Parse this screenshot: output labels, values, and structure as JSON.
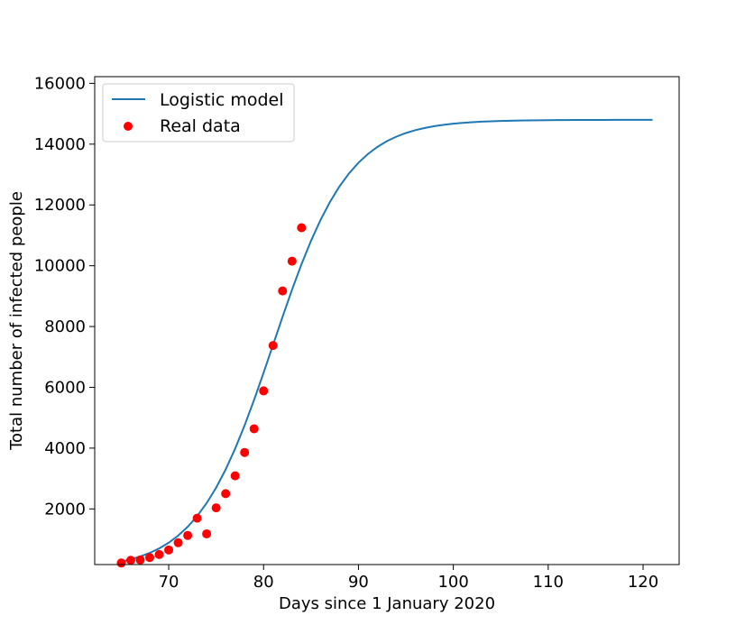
{
  "chart_data": {
    "type": "line",
    "title": "",
    "xlabel": "Days since 1 January 2020",
    "ylabel": "Total number of infected people",
    "xlim": [
      62.2,
      123.8
    ],
    "ylim": [
      170,
      16220
    ],
    "xticks": [
      70,
      80,
      90,
      100,
      110,
      120
    ],
    "yticks": [
      2000,
      4000,
      6000,
      8000,
      10000,
      12000,
      14000,
      16000
    ],
    "grid": false,
    "legend_position": "upper left",
    "legend": [
      "Logistic model",
      "Real data"
    ],
    "series": [
      {
        "name": "Logistic model",
        "kind": "line",
        "color": "#1f77b4",
        "model": {
          "a": 4.0,
          "b": 81.0,
          "c": 14800
        },
        "x_range": [
          65,
          121
        ]
      },
      {
        "name": "Real data",
        "kind": "scatter",
        "color": "#ff0000",
        "x": [
          65,
          66,
          67,
          68,
          69,
          70,
          71,
          72,
          73,
          74,
          75,
          76,
          77,
          78,
          79,
          80,
          81,
          82,
          83,
          84
        ],
        "y": [
          221,
          311,
          322,
          400,
          500,
          650,
          888,
          1128,
          1694,
          1180,
          2036,
          2502,
          3089,
          3858,
          4636,
          5883,
          7375,
          9172,
          10149,
          11250
        ]
      }
    ]
  }
}
